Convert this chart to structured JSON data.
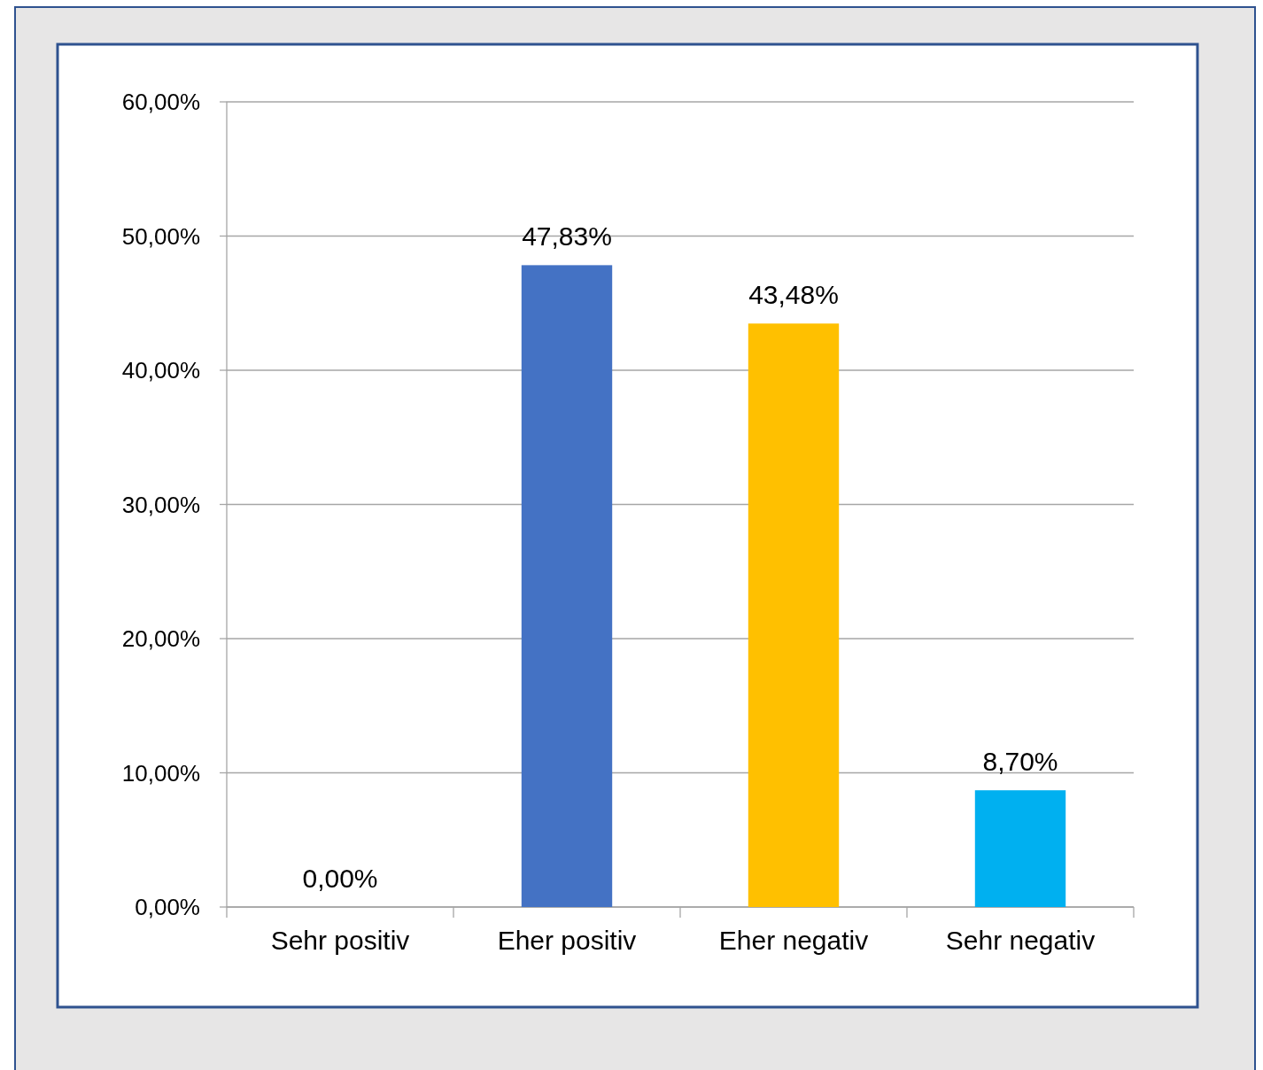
{
  "chart_data": {
    "type": "bar",
    "categories": [
      "Sehr positiv",
      "Eher positiv",
      "Eher negativ",
      "Sehr negativ"
    ],
    "values": [
      0,
      47.83,
      43.48,
      8.7
    ],
    "colors": [
      "#4472c4",
      "#4472c4",
      "#ffc000",
      "#00b0f0"
    ],
    "value_labels": [
      "0,00%",
      "47,83%",
      "43,48%",
      "8,70%"
    ],
    "ylim": [
      0,
      60
    ],
    "yticks": [
      {
        "value": 0,
        "label": "0,00%"
      },
      {
        "value": 10,
        "label": "10,00%"
      },
      {
        "value": 20,
        "label": "20,00%"
      },
      {
        "value": 30,
        "label": "30,00%"
      },
      {
        "value": 40,
        "label": "40,00%"
      },
      {
        "value": 50,
        "label": "50,00%"
      },
      {
        "value": 60,
        "label": "60,00%"
      }
    ],
    "grid": "y"
  }
}
